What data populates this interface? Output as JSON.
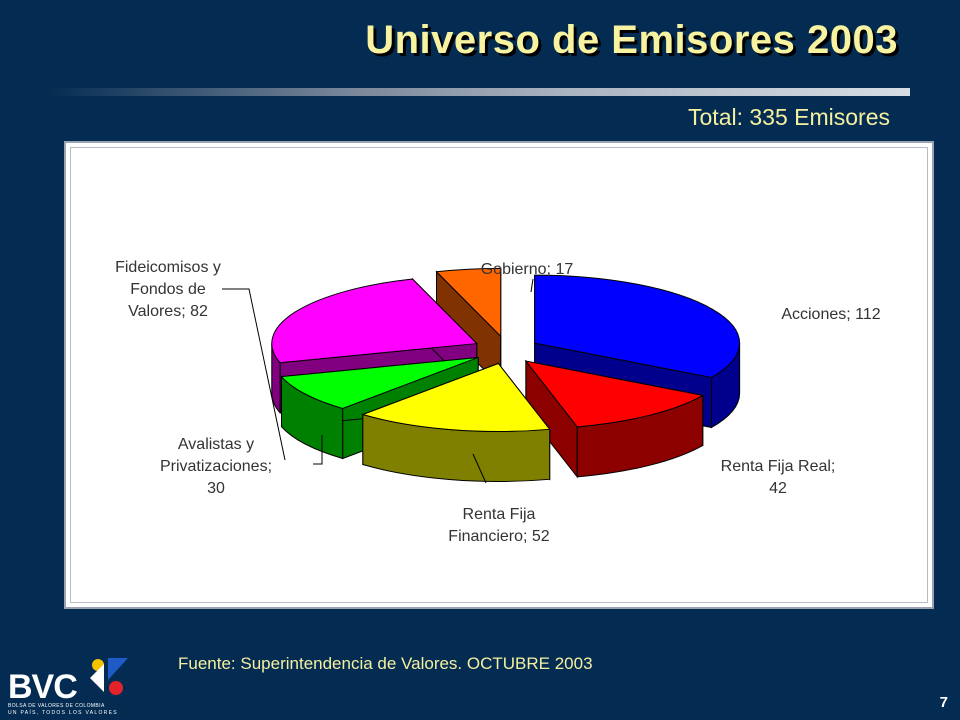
{
  "slide": {
    "title": "Universo de Emisores 2003",
    "subtitle": "Total: 335 Emisores",
    "source": "Fuente: Superintendencia de Valores. OCTUBRE 2003",
    "page_number": "7"
  },
  "logo": {
    "name": "BVC",
    "tagline": "BOLSA DE VALORES DE COLOMBIA",
    "slogan": "UN PAÍS, TODOS LOS VALORES"
  },
  "colors": {
    "background": "#042c52",
    "title": "#f7f3a0"
  },
  "chart_data": {
    "type": "pie",
    "style": "3d-exploded",
    "total": 335,
    "slices": [
      {
        "label_lines": [
          "Acciones; 112"
        ],
        "category": "Acciones",
        "value": 112,
        "color": "#0000ff",
        "side": "#00008c"
      },
      {
        "label_lines": [
          "Renta Fija Real;",
          "42"
        ],
        "category": "Renta Fija Real",
        "value": 42,
        "color": "#ff0000",
        "side": "#8c0000"
      },
      {
        "label_lines": [
          "Renta Fija",
          "Financiero; 52"
        ],
        "category": "Renta Fija Financiero",
        "value": 52,
        "color": "#ffff00",
        "side": "#808000"
      },
      {
        "label_lines": [
          "Avalistas y",
          "Privatizaciones;",
          "30"
        ],
        "category": "Avalistas y Privatizaciones",
        "value": 30,
        "color": "#00ff00",
        "side": "#008000"
      },
      {
        "label_lines": [
          "Fideicomisos y",
          "Fondos de",
          "Valores; 82"
        ],
        "category": "Fideicomisos y Fondos de Valores",
        "value": 82,
        "color": "#ff00ff",
        "side": "#800080"
      },
      {
        "label_lines": [
          "Gobierno; 17"
        ],
        "category": "Gobierno",
        "value": 17,
        "color": "#ff6600",
        "side": "#803300"
      }
    ]
  }
}
